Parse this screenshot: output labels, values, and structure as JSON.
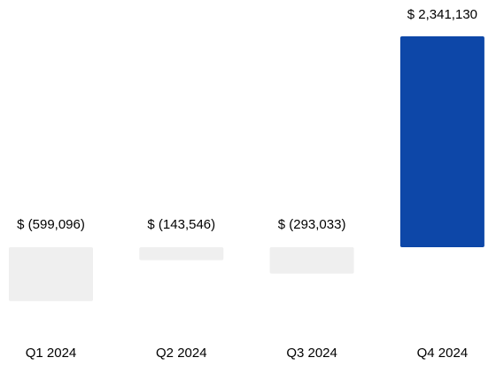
{
  "chart_data": {
    "type": "bar",
    "title": "",
    "xlabel": "",
    "ylabel": "",
    "categories": [
      "Q1 2024",
      "Q2 2024",
      "Q3 2024",
      "Q4 2024"
    ],
    "values": [
      -599096,
      -143546,
      -293033,
      2341130
    ],
    "data_labels": [
      "$ (599,096)",
      "$ (143,546)",
      "$ (293,033)",
      "$ 2,341,130"
    ],
    "ylim": [
      -1000000,
      2500000
    ],
    "grid": false,
    "legend": "none",
    "colors": {
      "positive": "#0d47a8",
      "negative": "#efefef"
    }
  }
}
